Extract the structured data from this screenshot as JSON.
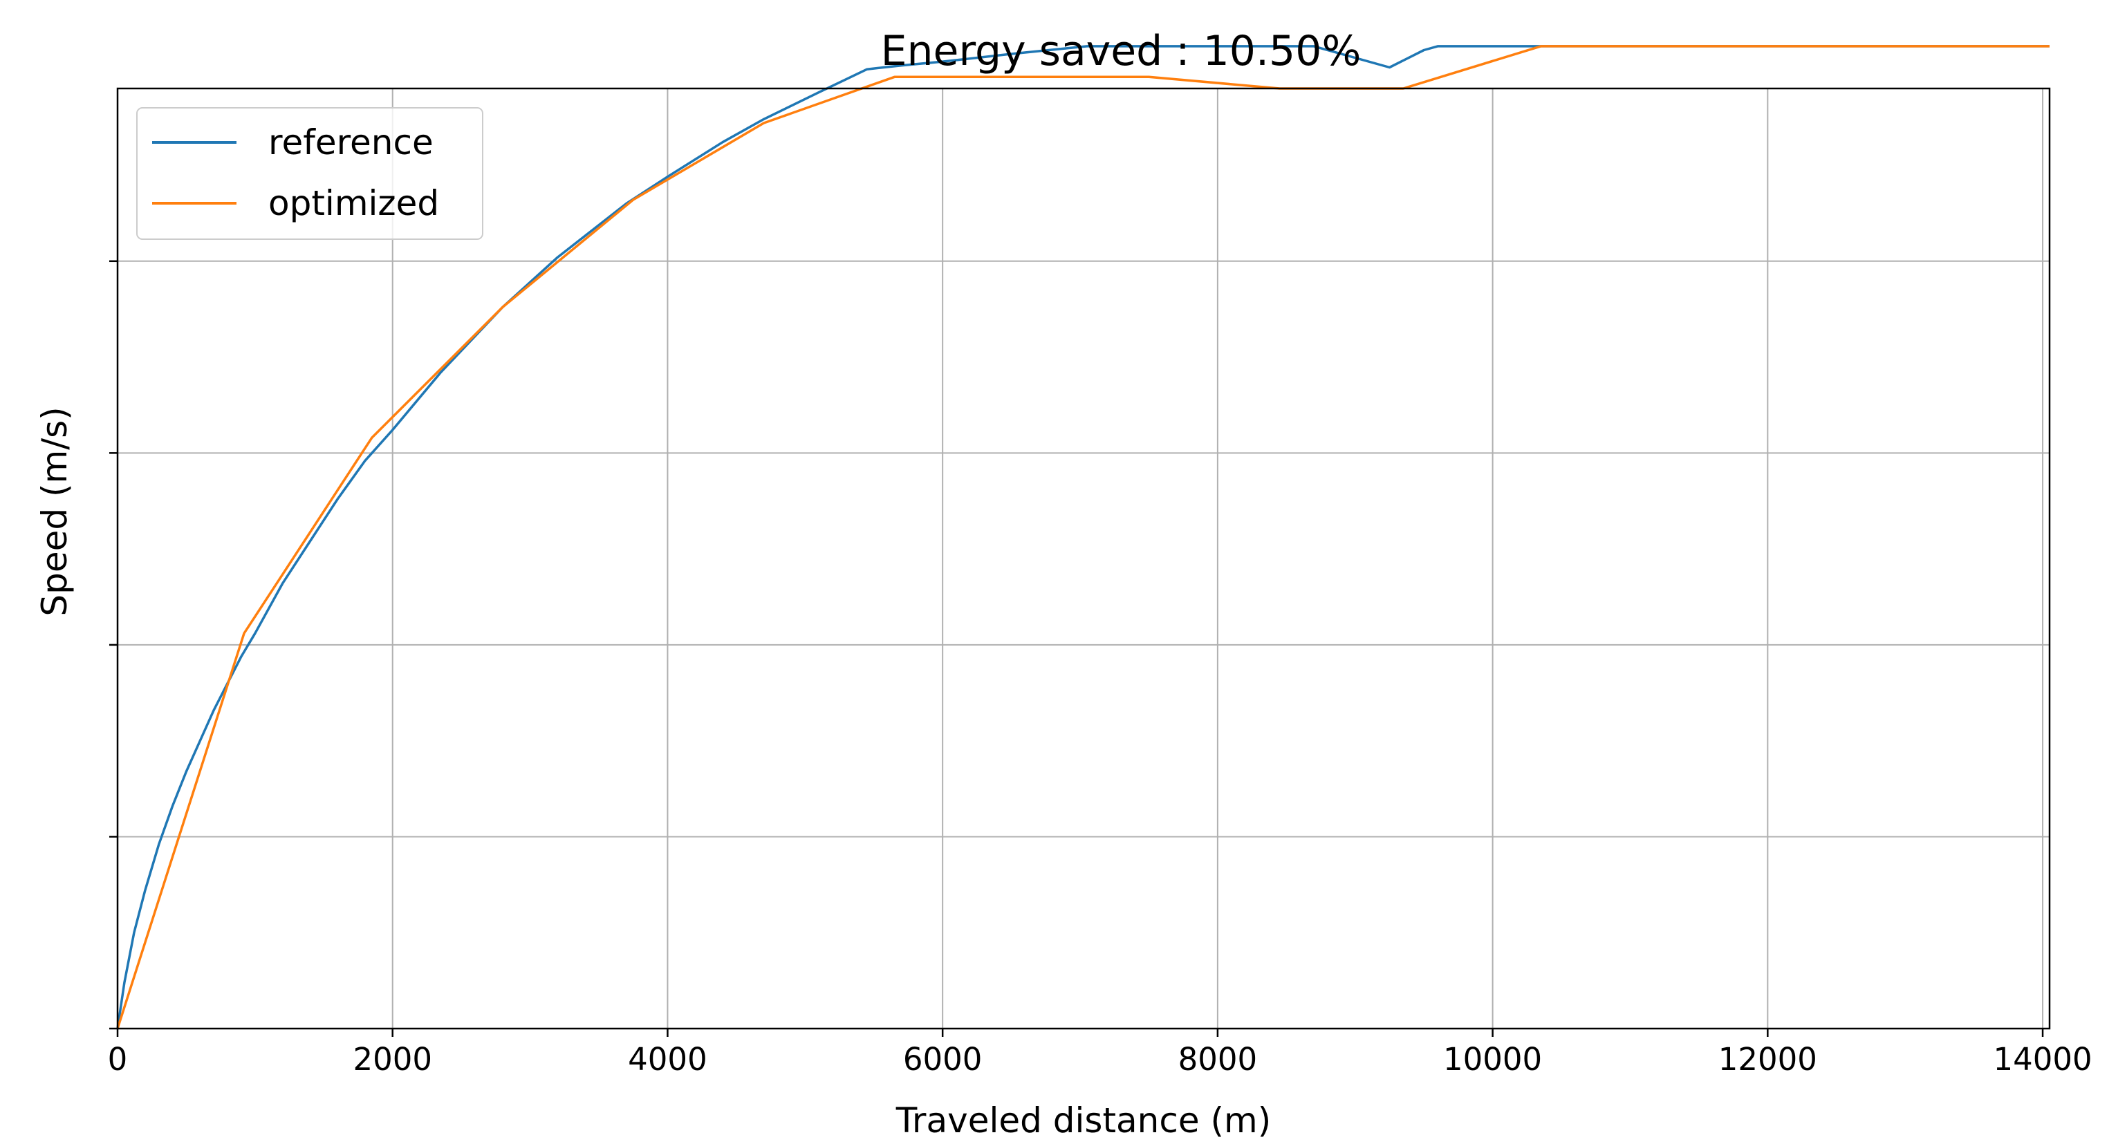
{
  "chart_data": {
    "type": "line",
    "title": "Energy saved : 10.50%",
    "xlabel": "Traveled distance (m)",
    "ylabel": "Speed (m/s)",
    "xlim": [
      0,
      14050
    ],
    "ylim": [
      0,
      24.5
    ],
    "x_ticks": [
      0,
      2000,
      4000,
      6000,
      8000,
      10000,
      12000,
      14000
    ],
    "y_ticks": [
      0,
      5,
      10,
      15,
      20,
      25
    ],
    "y_tick_labels_shown": false,
    "grid": true,
    "legend_position": "upper-left",
    "colors": {
      "reference": "#1f77b4",
      "optimized": "#ff7f0e",
      "grid": "#b0b0b0"
    },
    "series": [
      {
        "name": "reference",
        "color": "#1f77b4",
        "points": [
          [
            0,
            0
          ],
          [
            50,
            1.2
          ],
          [
            120,
            2.5
          ],
          [
            200,
            3.6
          ],
          [
            300,
            4.8
          ],
          [
            400,
            5.8
          ],
          [
            500,
            6.7
          ],
          [
            600,
            7.5
          ],
          [
            700,
            8.3
          ],
          [
            800,
            9.0
          ],
          [
            900,
            9.7
          ],
          [
            1000,
            10.3
          ],
          [
            1200,
            11.6
          ],
          [
            1400,
            12.7
          ],
          [
            1600,
            13.8
          ],
          [
            1800,
            14.8
          ],
          [
            2000,
            15.6
          ],
          [
            2350,
            17.1
          ],
          [
            2800,
            18.8
          ],
          [
            3200,
            20.1
          ],
          [
            3700,
            21.5
          ],
          [
            4000,
            22.2
          ],
          [
            4400,
            23.1
          ],
          [
            4700,
            23.7
          ],
          [
            5100,
            24.4
          ],
          [
            5450,
            25.0
          ],
          [
            5700,
            25.1
          ],
          [
            6000,
            25.2
          ],
          [
            6500,
            25.4
          ],
          [
            7050,
            25.6
          ],
          [
            8700,
            25.6
          ],
          [
            9250,
            25.05
          ],
          [
            9500,
            25.5
          ],
          [
            9600,
            25.6
          ],
          [
            14050,
            25.6
          ]
        ]
      },
      {
        "name": "optimized",
        "color": "#ff7f0e",
        "points": [
          [
            0,
            0
          ],
          [
            920,
            10.3
          ],
          [
            1850,
            15.4
          ],
          [
            2800,
            18.8
          ],
          [
            3750,
            21.6
          ],
          [
            4700,
            23.6
          ],
          [
            5650,
            24.8
          ],
          [
            7500,
            24.8
          ],
          [
            8450,
            24.5
          ],
          [
            9350,
            24.5
          ],
          [
            10350,
            25.6
          ],
          [
            14050,
            25.6
          ]
        ]
      }
    ]
  }
}
